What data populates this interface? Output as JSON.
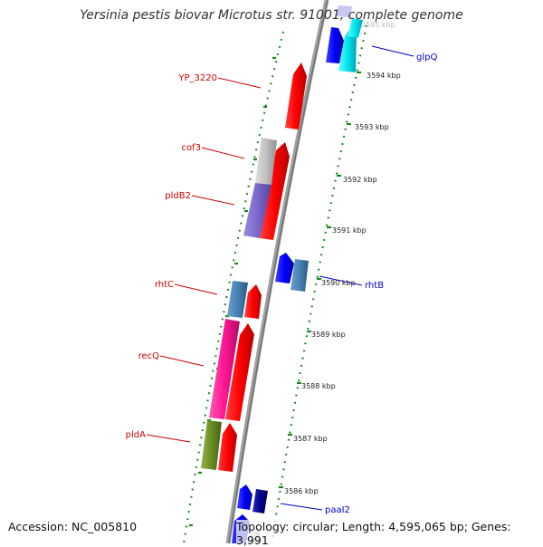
{
  "title": "Yersinia pestis biovar Microtus str. 91001, complete genome",
  "footer": {
    "accession_label": "Accession: NC_005810",
    "topology_label": "Topology: circular; Length: 4,595,065 bp; Genes: 3,991"
  },
  "scale_labels": [
    "3595 kbp",
    "3594 kbp",
    "3593 kbp",
    "3592 kbp",
    "3591 kbp",
    "3590 kbp",
    "3589 kbp",
    "3588 kbp",
    "3587 kbp",
    "3586 kbp"
  ],
  "genes_left": [
    {
      "name": "YP_3220",
      "color": "#cc0000"
    },
    {
      "name": "cof3",
      "color": "#cc0000"
    },
    {
      "name": "pldB2",
      "color": "#cc0000"
    },
    {
      "name": "rhtC",
      "color": "#cc0000"
    },
    {
      "name": "recQ",
      "color": "#cc0000"
    },
    {
      "name": "pldA",
      "color": "#cc0000"
    }
  ],
  "genes_right": [
    {
      "name": "glpQ",
      "color": "#0000cc"
    },
    {
      "name": "rhtB",
      "color": "#0000cc"
    },
    {
      "name": "paaI2",
      "color": "#0000cc"
    }
  ],
  "colors": {
    "backbone": "#8c8c8c",
    "dots": "#1a8a1a",
    "forward_cds": "#ff0000",
    "reverse_cds": "#0000ff",
    "cof3": "#c0c0c0",
    "pldB2": "#7b68cc",
    "rhtC": "#4682b4",
    "recQ": "#ff1493",
    "pldA": "#6b8e23",
    "glpQ": "#00e5ee",
    "rhtB": "#4682b4",
    "paaI2": "#00008b"
  }
}
